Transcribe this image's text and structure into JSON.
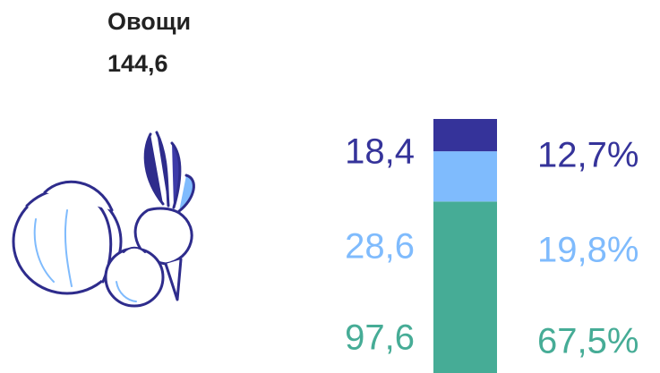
{
  "chart_data": {
    "type": "stacked_bar",
    "title": "Овощи",
    "subtitle": "144,6",
    "values": [
      97.6,
      28.6,
      18.4
    ],
    "value_labels": [
      "97,6",
      "28,6",
      "18,4"
    ],
    "colors": [
      "#46ac96",
      "#7fbbfd",
      "#35339a"
    ],
    "shares": [
      {
        "value": 67.5,
        "label": "67,5%"
      },
      {
        "value": 19.8,
        "label": "19,8%"
      },
      {
        "value": 12.7,
        "label": "12,7%"
      }
    ]
  }
}
